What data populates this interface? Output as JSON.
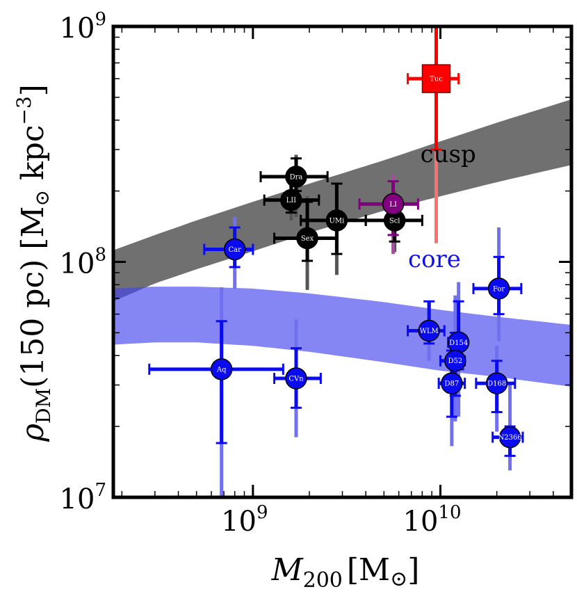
{
  "chart_data": {
    "type": "scatter",
    "xscale": "log",
    "yscale": "log",
    "xlim": [
      180000000,
      50000000000
    ],
    "ylim": [
      10000000,
      1000000000
    ],
    "xlabel": {
      "symbol": "M",
      "sub": "200",
      "unit": "[M",
      "unit_end": "]"
    },
    "ylabel": {
      "symbol": "ρ",
      "sub": "DM",
      "mid": "(150 pc) [M",
      "unit_end": " kpc",
      "sup": "−3",
      "close": "]"
    },
    "xticks": [
      {
        "value": 1000000000,
        "base": "10",
        "exp": "9"
      },
      {
        "value": 10000000000,
        "base": "10",
        "exp": "10"
      }
    ],
    "yticks": [
      {
        "value": 10000000,
        "base": "10",
        "exp": "7"
      },
      {
        "value": 100000000,
        "base": "10",
        "exp": "8"
      },
      {
        "value": 1000000000,
        "base": "10",
        "exp": "9"
      }
    ],
    "bands": [
      {
        "name": "cusp",
        "label": "cusp",
        "color": "#333333",
        "label_color": "#000000",
        "opacity": 0.7,
        "x": [
          180000000,
          300000000,
          500000000,
          1000000000,
          2000000000,
          5000000000,
          10000000000,
          20000000000,
          50000000000
        ],
        "upper": [
          112000000,
          130000000,
          150000000,
          180000000,
          215000000,
          270000000,
          325000000,
          390000000,
          490000000
        ],
        "lower": [
          68000000,
          81000000,
          93000000,
          111000000,
          133000000,
          165000000,
          190000000,
          218000000,
          258000000
        ],
        "label_pos": {
          "x": 11000000000,
          "y": 265000000
        }
      },
      {
        "name": "core",
        "label": "core",
        "color": "#4444ee",
        "label_color": "#1111ee",
        "opacity": 0.65,
        "x": [
          180000000,
          300000000,
          500000000,
          1000000000,
          2000000000,
          5000000000,
          10000000000,
          20000000000,
          50000000000
        ],
        "upper": [
          77000000,
          78500000,
          78500000,
          77000000,
          73500000,
          67500000,
          62500000,
          58500000,
          54000000
        ],
        "lower": [
          44500000,
          45500000,
          45500000,
          44000000,
          41500000,
          37500000,
          34500000,
          32500000,
          29500000
        ],
        "label_pos": {
          "x": 9300000000,
          "y": 95000000
        }
      }
    ],
    "series": [
      {
        "name": "cusp",
        "color": "#000000",
        "err_color": "#000000",
        "err_faint": "#555555"
      },
      {
        "name": "core",
        "color": "#0b0bf0",
        "err_color": "#0b0bf0",
        "err_faint": "#7070f0"
      },
      {
        "name": "Leo I",
        "color": "#800080",
        "err_color": "#800080",
        "err_faint": "#a64ca6"
      },
      {
        "name": "Tucana",
        "color": "#ff0000",
        "err_color": "#ff0000",
        "err_faint": "#ff7070"
      }
    ],
    "points": [
      {
        "label": "Dra",
        "series": 0,
        "marker": "circle",
        "x": 1700000000,
        "y": 230000000,
        "x_lo": 1100000000,
        "x_hi": 2500000000,
        "y_lo": 200000000,
        "y_hi": 275000000,
        "y_lo_faint": 155000000,
        "y_hi_faint": 285000000
      },
      {
        "label": "LII",
        "series": 0,
        "marker": "circle",
        "x": 1600000000,
        "y": 183000000,
        "x_lo": 1150000000,
        "x_hi": 2250000000,
        "y_lo": 162000000,
        "y_hi": 225000000,
        "y_lo_faint": 150000000,
        "y_hi_faint": 225000000
      },
      {
        "label": "UMi",
        "series": 0,
        "marker": "circle",
        "x": 2800000000,
        "y": 150000000,
        "x_lo": 1800000000,
        "x_hi": 4000000000,
        "y_lo": 108000000,
        "y_hi": 215000000,
        "y_lo_faint": 88000000,
        "y_hi_faint": 215000000
      },
      {
        "label": "Scl",
        "series": 0,
        "marker": "circle",
        "x": 5700000000,
        "y": 150000000,
        "x_lo": 4000000000,
        "x_hi": 8000000000,
        "y_lo": 122000000,
        "y_hi": 180000000,
        "y_lo_faint": 110000000,
        "y_hi_faint": 200000000
      },
      {
        "label": "Sex",
        "series": 0,
        "marker": "circle",
        "x": 1950000000,
        "y": 126000000,
        "x_lo": 1300000000,
        "x_hi": 2800000000,
        "y_lo": 101000000,
        "y_hi": 180000000,
        "y_lo_faint": 76000000,
        "y_hi_faint": 190000000
      },
      {
        "label": "LI",
        "series": 2,
        "marker": "circle",
        "x": 5600000000,
        "y": 176000000,
        "x_lo": 3700000000,
        "x_hi": 7600000000,
        "y_lo": 130000000,
        "y_hi": 220000000,
        "y_lo_faint": 108000000,
        "y_hi_faint": 235000000
      },
      {
        "label": "Tuc",
        "series": 3,
        "marker": "square",
        "x": 9500000000,
        "y": 600000000,
        "x_lo": 6700000000,
        "x_hi": 12500000000,
        "y_lo": 300000000,
        "y_hi": 1000000000,
        "y_lo_faint": 120000000,
        "y_hi_faint": 1000000000
      },
      {
        "label": "Car",
        "series": 1,
        "marker": "circle",
        "x": 800000000,
        "y": 113000000,
        "x_lo": 550000000,
        "x_hi": 1000000000,
        "y_lo": 95000000,
        "y_hi": 140000000,
        "y_lo_faint": 77000000,
        "y_hi_faint": 155000000
      },
      {
        "label": "Aq",
        "series": 1,
        "marker": "circle",
        "x": 680000000,
        "y": 35000000,
        "x_lo": 280000000,
        "x_hi": 1450000000,
        "y_lo": 17000000,
        "y_hi": 56000000,
        "y_lo_faint": 10000000,
        "y_hi_faint": 78000000
      },
      {
        "label": "CVn",
        "series": 1,
        "marker": "circle",
        "x": 1700000000,
        "y": 32000000,
        "x_lo": 1300000000,
        "x_hi": 2300000000,
        "y_lo": 24000000,
        "y_hi": 43000000,
        "y_lo_faint": 18000000,
        "y_hi_faint": 57000000
      },
      {
        "label": "For",
        "series": 1,
        "marker": "circle",
        "x": 20500000000,
        "y": 77000000,
        "x_lo": 15000000000,
        "x_hi": 27000000000,
        "y_lo": 60000000,
        "y_hi": 105000000,
        "y_lo_faint": 46000000,
        "y_hi_faint": 140000000
      },
      {
        "label": "WLM",
        "series": 1,
        "marker": "circle",
        "x": 8700000000,
        "y": 51000000,
        "x_lo": 6700000000,
        "x_hi": 10500000000,
        "y_lo": 45000000,
        "y_hi": 68000000,
        "y_lo_faint": 38000000,
        "y_hi_faint": 68000000
      },
      {
        "label": "D154",
        "series": 1,
        "marker": "circle",
        "x": 12500000000,
        "y": 45500000,
        "x_lo": 11000000000,
        "x_hi": 13500000000,
        "y_lo": 35000000,
        "y_hi": 68000000,
        "y_lo_faint": 22000000,
        "y_hi_faint": 82000000
      },
      {
        "label": "D52",
        "series": 1,
        "marker": "circle",
        "x": 12000000000,
        "y": 38000000,
        "x_lo": 10000000000,
        "x_hi": 13500000000,
        "y_lo": 27000000,
        "y_hi": 50000000,
        "y_lo_faint": 21000000,
        "y_hi_faint": 72000000
      },
      {
        "label": "D87",
        "series": 1,
        "marker": "circle",
        "x": 11500000000,
        "y": 30500000,
        "x_lo": 9800000000,
        "x_hi": 13500000000,
        "y_lo": 22000000,
        "y_hi": 42000000,
        "y_lo_faint": 16500000,
        "y_hi_faint": 45000000
      },
      {
        "label": "D168",
        "series": 1,
        "marker": "circle",
        "x": 20000000000,
        "y": 30500000,
        "x_lo": 15500000000,
        "x_hi": 25000000000,
        "y_lo": 23000000,
        "y_hi": 38000000,
        "y_lo_faint": 19000000,
        "y_hi_faint": 44000000
      },
      {
        "label": "N2366",
        "series": 1,
        "marker": "circle",
        "x": 23500000000,
        "y": 18000000,
        "x_lo": 19000000000,
        "x_hi": 27500000000,
        "y_lo": 15000000,
        "y_hi": 20000000,
        "y_lo_faint": 13000000,
        "y_hi_faint": 30000000
      }
    ]
  }
}
